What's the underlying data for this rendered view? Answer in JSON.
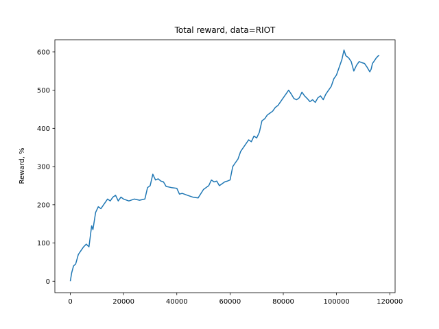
{
  "chart_data": {
    "type": "line",
    "title": "Total reward, data=RIOT",
    "xlabel": "",
    "ylabel": "Reward, %",
    "xlim": [
      -5800,
      122000
    ],
    "ylim": [
      -30,
      632
    ],
    "xticks": [
      0,
      20000,
      40000,
      60000,
      80000,
      100000,
      120000
    ],
    "xtick_labels": [
      "0",
      "20000",
      "40000",
      "60000",
      "80000",
      "100000",
      "120000"
    ],
    "yticks": [
      0,
      100,
      200,
      300,
      400,
      500,
      600
    ],
    "ytick_labels": [
      "0",
      "100",
      "200",
      "300",
      "400",
      "500",
      "600"
    ],
    "grid": false,
    "legend": "none",
    "series": [
      {
        "color": "#1f77b4",
        "x": [
          0,
          500,
          1200,
          2000,
          3000,
          4000,
          5000,
          6000,
          7000,
          8000,
          8500,
          9500,
          10500,
          11500,
          12500,
          14000,
          15000,
          16000,
          17000,
          18000,
          19000,
          20000,
          22000,
          24000,
          26000,
          28000,
          29000,
          30000,
          31000,
          32000,
          33000,
          34000,
          35000,
          36000,
          38000,
          40000,
          41000,
          42000,
          44000,
          46000,
          48000,
          50000,
          51000,
          52000,
          53000,
          54000,
          55000,
          56000,
          57000,
          58000,
          59000,
          60000,
          61000,
          62000,
          63000,
          64000,
          65000,
          66000,
          67000,
          68000,
          69000,
          70000,
          71000,
          72000,
          73000,
          74000,
          75000,
          76000,
          77000,
          78000,
          79000,
          80000,
          81000,
          82000,
          83000,
          84000,
          85000,
          86000,
          87000,
          88000,
          89000,
          90000,
          91000,
          92000,
          93000,
          94000,
          95000,
          96000,
          97000,
          98000,
          99000,
          100000,
          101000,
          102000,
          102800,
          103500,
          104500,
          105500,
          106500,
          107500,
          108500,
          109500,
          110500,
          111500,
          112500,
          113000,
          113500,
          114000,
          115000,
          116000
        ],
        "y": [
          0,
          22,
          40,
          45,
          70,
          80,
          90,
          97,
          90,
          145,
          135,
          180,
          195,
          190,
          200,
          215,
          210,
          220,
          225,
          210,
          220,
          215,
          210,
          215,
          212,
          215,
          245,
          250,
          280,
          265,
          268,
          262,
          260,
          248,
          245,
          243,
          228,
          230,
          225,
          220,
          218,
          240,
          245,
          250,
          265,
          260,
          262,
          250,
          255,
          260,
          262,
          265,
          300,
          310,
          320,
          340,
          350,
          360,
          370,
          365,
          380,
          375,
          390,
          420,
          425,
          435,
          440,
          445,
          455,
          460,
          470,
          480,
          490,
          500,
          490,
          478,
          475,
          480,
          495,
          485,
          478,
          470,
          475,
          468,
          480,
          485,
          475,
          490,
          500,
          510,
          530,
          540,
          560,
          580,
          605,
          590,
          585,
          575,
          550,
          565,
          575,
          572,
          570,
          560,
          548,
          555,
          570,
          575,
          585,
          592
        ]
      }
    ]
  }
}
